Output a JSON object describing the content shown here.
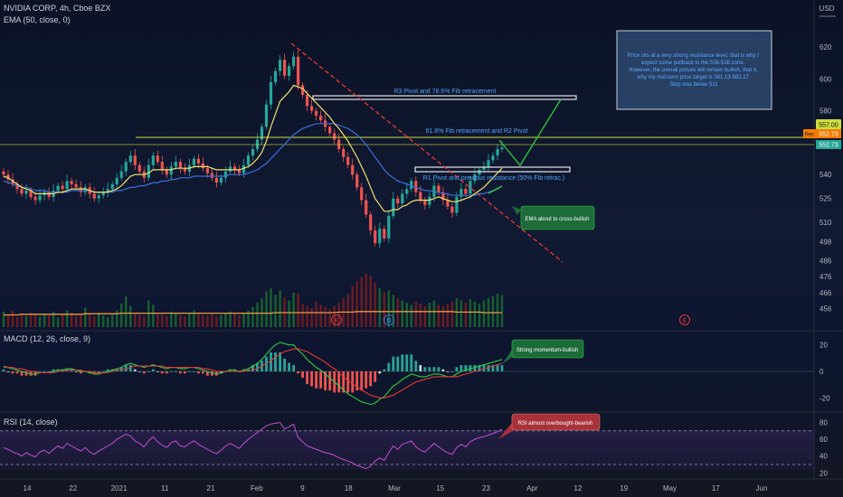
{
  "header": {
    "symbol": "NVIDIA CORP, 4h, Cboe BZX",
    "ema_label": "EMA (50, close, 0)",
    "macd_label": "MACD (12, 26, close, 9)",
    "rsi_label": "RSI (14, close)",
    "currency": "USD"
  },
  "colors": {
    "up": "#26a69a",
    "down": "#ef5350",
    "ema50": "#3d6fd9",
    "ema_fast": "#f0e36b",
    "volume_ma": "#e89a3c",
    "trend_red": "#e53935",
    "price_line": "#cddc39",
    "projection": "#2ecc40",
    "macd_line": "#2ecc40",
    "signal_line": "#e53935",
    "rsi_line": "#c64fd6",
    "callout_green": "#1e6b3a",
    "callout_red": "#a8323a",
    "note_bg": "#2e4b73"
  },
  "price_axis": {
    "ticks": [
      620,
      600,
      580,
      557,
      540,
      525,
      510,
      498,
      486,
      476,
      466,
      456
    ],
    "min": 450,
    "max": 628,
    "labels": {
      "current": "557.00",
      "bar1_tag": "Rec",
      "bar1": "552.73",
      "bar2": "552.73"
    }
  },
  "macd_axis": {
    "ticks": [
      20,
      0,
      -20
    ],
    "min": -28,
    "max": 28
  },
  "rsi_axis": {
    "ticks": [
      80,
      60,
      40,
      20
    ],
    "min": 15,
    "max": 88,
    "overbought": 70,
    "oversold": 30
  },
  "time_axis": {
    "labels": [
      "14",
      "22",
      "2021",
      "11",
      "21",
      "Feb",
      "9",
      "18",
      "Mar",
      "15",
      "23",
      "Apr",
      "12",
      "19",
      "May",
      "17",
      "Jun"
    ]
  },
  "annotations": {
    "r3": "R3 Pivot and 78.6% Fib retracement",
    "r2": "61.8% Fib retracement and R2 Pivot",
    "r1": "R1 Pivot and previous resistance (50% Fib retrac.)",
    "ema_callout": "EMA about to cross-bullish",
    "macd_callout": "Strong momentum-bullish",
    "rsi_callout": "RSI almost overbought-bearish",
    "note": [
      "Price sits at a very strong resistance level, that is why I",
      "expect some pullback to the 536-538 zone.",
      "However, the overall picture will remain bullish, that is",
      "why my mid-term price target is 581.13-582.27",
      "Stop loss below 511"
    ],
    "events": [
      "E",
      "D",
      "E"
    ]
  },
  "chart_data": {
    "type": "line",
    "title": "NVIDIA CORP, 4h, Cboe BZX",
    "close": [
      540,
      537,
      534,
      531,
      528,
      530,
      526,
      524,
      527,
      529,
      526,
      530,
      533,
      531,
      536,
      534,
      532,
      529,
      532,
      528,
      525,
      527,
      529,
      531,
      534,
      538,
      542,
      548,
      552,
      546,
      542,
      538,
      546,
      552,
      548,
      543,
      540,
      545,
      548,
      544,
      542,
      546,
      550,
      547,
      544,
      541,
      538,
      535,
      538,
      542,
      545,
      543,
      541,
      546,
      552,
      556,
      562,
      570,
      584,
      598,
      605,
      612,
      602,
      608,
      614,
      596,
      590,
      583,
      580,
      577,
      574,
      570,
      566,
      562,
      556,
      551,
      546,
      540,
      532,
      524,
      515,
      505,
      497,
      506,
      500,
      514,
      525,
      522,
      528,
      531,
      536,
      529,
      524,
      521,
      526,
      533,
      529,
      524,
      520,
      516,
      526,
      531,
      528,
      536,
      540,
      543,
      545,
      549,
      552,
      556,
      557
    ],
    "ema_fast": [
      539,
      538,
      536,
      534,
      532,
      531,
      530,
      528,
      528,
      528,
      528,
      528,
      529,
      529,
      530,
      531,
      531,
      531,
      531,
      530,
      529,
      529,
      529,
      529,
      530,
      531,
      533,
      536,
      539,
      540,
      540,
      540,
      541,
      543,
      543,
      543,
      543,
      543,
      544,
      544,
      544,
      544,
      545,
      545,
      545,
      545,
      544,
      543,
      543,
      543,
      543,
      543,
      543,
      544,
      545,
      547,
      550,
      554,
      561,
      570,
      578,
      586,
      589,
      592,
      596,
      595,
      594,
      591,
      588,
      585,
      582,
      579,
      576,
      572,
      569,
      565,
      561,
      556,
      551,
      545,
      539,
      532,
      525,
      521,
      517,
      517,
      518,
      518,
      520,
      521,
      523,
      524,
      524,
      524,
      524,
      525,
      526,
      525,
      524,
      523,
      523,
      524,
      525,
      526,
      528,
      530,
      532,
      535,
      538,
      541,
      544
    ],
    "ema50": [
      536,
      535,
      534,
      533,
      532,
      532,
      531,
      530,
      530,
      530,
      529,
      529,
      529,
      529,
      529,
      530,
      530,
      530,
      530,
      530,
      529,
      529,
      529,
      529,
      529,
      530,
      530,
      531,
      532,
      532,
      533,
      533,
      534,
      535,
      535,
      536,
      536,
      537,
      537,
      538,
      538,
      538,
      539,
      539,
      539,
      539,
      539,
      539,
      539,
      539,
      540,
      540,
      540,
      540,
      541,
      542,
      543,
      545,
      547,
      550,
      553,
      556,
      559,
      562,
      565,
      567,
      569,
      570,
      571,
      572,
      572,
      572,
      572,
      572,
      571,
      570,
      569,
      567,
      565,
      562,
      559,
      555,
      551,
      547,
      543,
      540,
      538,
      536,
      535,
      534,
      533,
      532,
      531,
      530,
      530,
      529,
      529,
      528,
      528,
      527,
      527,
      527,
      527,
      527,
      527,
      528,
      528,
      529,
      530,
      531,
      533
    ],
    "macd": [
      4,
      3,
      2,
      1,
      0,
      -1,
      -2,
      -2,
      -1,
      -1,
      -1,
      0,
      1,
      1,
      2,
      2,
      1,
      0,
      0,
      -1,
      -2,
      -2,
      -1,
      0,
      1,
      2,
      3,
      5,
      6,
      5,
      4,
      3,
      4,
      5,
      4,
      3,
      2,
      3,
      3,
      2,
      2,
      3,
      3,
      2,
      1,
      0,
      -1,
      -2,
      -1,
      0,
      1,
      1,
      0,
      1,
      2,
      4,
      6,
      9,
      13,
      17,
      20,
      22,
      21,
      20,
      20,
      16,
      13,
      9,
      6,
      3,
      1,
      -2,
      -5,
      -8,
      -11,
      -14,
      -17,
      -19,
      -21,
      -23,
      -24,
      -25,
      -24,
      -21,
      -19,
      -15,
      -11,
      -9,
      -6,
      -4,
      -2,
      -3,
      -4,
      -4,
      -3,
      -2,
      -2,
      -3,
      -4,
      -4,
      -2,
      0,
      1,
      2,
      3,
      4,
      5,
      6,
      7,
      8,
      9
    ],
    "signal": [
      3,
      3,
      3,
      2,
      2,
      1,
      0,
      0,
      -1,
      -1,
      -1,
      -1,
      0,
      0,
      1,
      1,
      1,
      1,
      0,
      0,
      -1,
      -1,
      -1,
      -1,
      0,
      1,
      1,
      2,
      3,
      4,
      4,
      4,
      4,
      4,
      4,
      4,
      3,
      3,
      3,
      3,
      3,
      3,
      3,
      3,
      2,
      2,
      1,
      0,
      0,
      0,
      0,
      0,
      0,
      0,
      1,
      1,
      2,
      4,
      6,
      8,
      11,
      13,
      15,
      16,
      17,
      17,
      16,
      15,
      13,
      11,
      9,
      7,
      4,
      2,
      -1,
      -4,
      -7,
      -9,
      -12,
      -14,
      -16,
      -18,
      -19,
      -20,
      -20,
      -19,
      -18,
      -16,
      -14,
      -12,
      -10,
      -8,
      -7,
      -6,
      -5,
      -4,
      -4,
      -4,
      -4,
      -4,
      -4,
      -3,
      -2,
      -1,
      0,
      1,
      2,
      3,
      4,
      5,
      6
    ],
    "rsi": [
      50,
      48,
      45,
      43,
      40,
      44,
      41,
      39,
      45,
      47,
      43,
      48,
      52,
      49,
      55,
      52,
      49,
      46,
      50,
      45,
      42,
      46,
      49,
      52,
      55,
      60,
      63,
      66,
      64,
      58,
      55,
      51,
      58,
      63,
      57,
      53,
      50,
      56,
      58,
      52,
      51,
      55,
      58,
      54,
      51,
      48,
      45,
      43,
      47,
      52,
      55,
      52,
      49,
      55,
      60,
      64,
      68,
      72,
      76,
      78,
      79,
      80,
      72,
      75,
      78,
      62,
      57,
      52,
      50,
      48,
      46,
      44,
      43,
      41,
      38,
      36,
      34,
      32,
      29,
      27,
      25,
      28,
      34,
      38,
      35,
      44,
      52,
      48,
      54,
      56,
      58,
      51,
      47,
      45,
      50,
      55,
      51,
      47,
      44,
      42,
      50,
      54,
      51,
      57,
      60,
      62,
      63,
      65,
      67,
      69,
      72
    ],
    "volume": [
      28,
      22,
      30,
      18,
      25,
      20,
      26,
      22,
      19,
      24,
      21,
      28,
      17,
      23,
      30,
      26,
      20,
      22,
      35,
      24,
      19,
      26,
      21,
      18,
      25,
      30,
      42,
      55,
      38,
      26,
      22,
      20,
      48,
      40,
      24,
      22,
      20,
      28,
      26,
      22,
      19,
      24,
      30,
      26,
      22,
      21,
      24,
      20,
      22,
      26,
      28,
      24,
      21,
      26,
      30,
      36,
      44,
      52,
      64,
      70,
      58,
      66,
      54,
      48,
      62,
      60,
      42,
      38,
      34,
      46,
      40,
      36,
      32,
      38,
      44,
      52,
      60,
      74,
      82,
      90,
      96,
      92,
      80,
      70,
      62,
      66,
      58,
      52,
      48,
      44,
      40,
      46,
      42,
      38,
      44,
      48,
      40,
      38,
      42,
      46,
      52,
      48,
      44,
      50,
      46,
      42,
      48,
      52,
      56,
      60,
      58
    ],
    "volume_ma": [
      22,
      22,
      22,
      22,
      23,
      23,
      23,
      23,
      23,
      23,
      23,
      23,
      23,
      23,
      23,
      23,
      23,
      23,
      24,
      24,
      24,
      24,
      24,
      24,
      24,
      24,
      25,
      25,
      25,
      25,
      25,
      25,
      25,
      25,
      25,
      25,
      25,
      25,
      25,
      25,
      25,
      25,
      25,
      25,
      25,
      25,
      25,
      25,
      25,
      25,
      25,
      25,
      25,
      25,
      25,
      25,
      25,
      25,
      25,
      25,
      26,
      26,
      26,
      26,
      26,
      26,
      26,
      26,
      26,
      26,
      26,
      26,
      26,
      26,
      27,
      27,
      27,
      27,
      28,
      28,
      28,
      28,
      28,
      28,
      28,
      28,
      28,
      28,
      28,
      28,
      28,
      28,
      28,
      28,
      28,
      28,
      28,
      28,
      28,
      28,
      27,
      27,
      27,
      27,
      27,
      27,
      26,
      26,
      26,
      26,
      26
    ]
  }
}
